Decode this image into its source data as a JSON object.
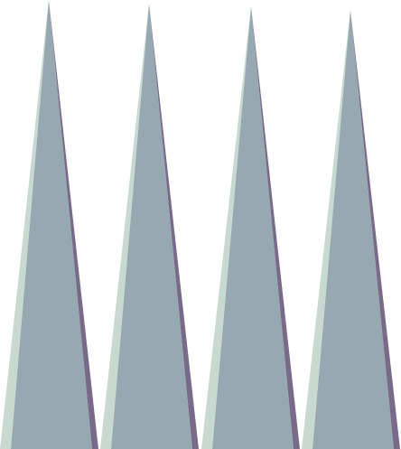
{
  "palette": {
    "background": "#ffffff",
    "face": "#97a9b0",
    "highlight": "#c7d9d0",
    "shadow": "#7a6a8a"
  },
  "spikes": [
    {
      "name": "spike-1"
    },
    {
      "name": "spike-2"
    },
    {
      "name": "spike-3"
    },
    {
      "name": "spike-4"
    }
  ]
}
